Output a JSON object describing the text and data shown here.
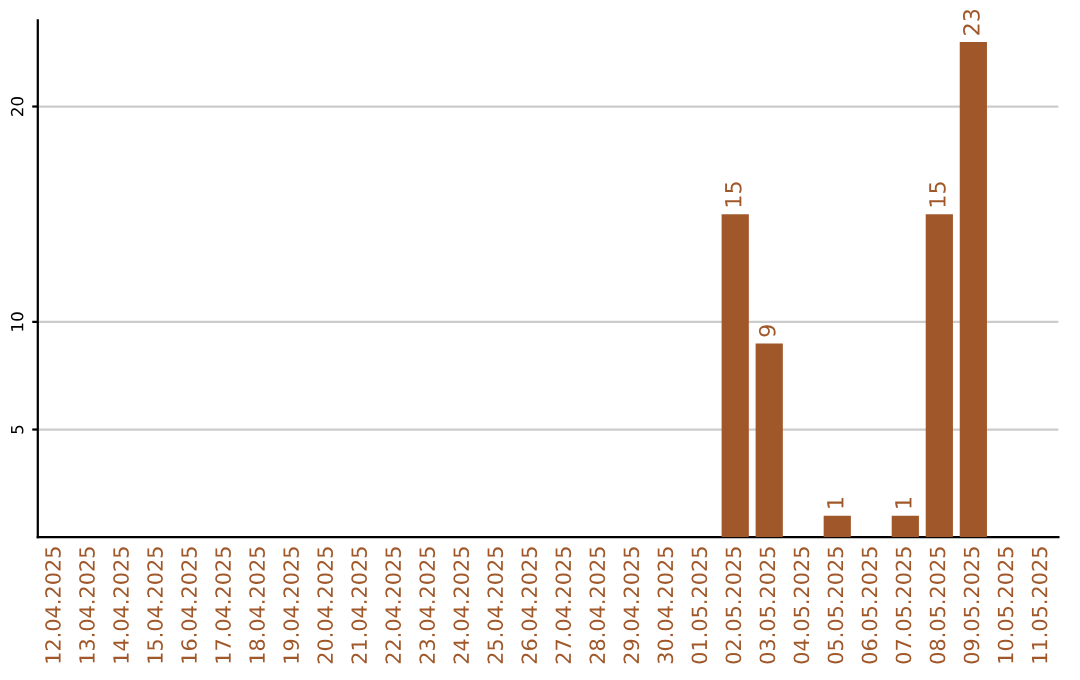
{
  "chart_data": {
    "type": "bar",
    "categories": [
      "12.04.2025",
      "13.04.2025",
      "14.04.2025",
      "15.04.2025",
      "16.04.2025",
      "17.04.2025",
      "18.04.2025",
      "19.04.2025",
      "20.04.2025",
      "21.04.2025",
      "22.04.2025",
      "23.04.2025",
      "24.04.2025",
      "25.04.2025",
      "26.04.2025",
      "27.04.2025",
      "28.04.2025",
      "29.04.2025",
      "30.04.2025",
      "01.05.2025",
      "02.05.2025",
      "03.05.2025",
      "04.05.2025",
      "05.05.2025",
      "06.05.2025",
      "07.05.2025",
      "08.05.2025",
      "09.05.2025",
      "10.05.2025",
      "11.05.2025"
    ],
    "values": [
      0,
      0,
      0,
      0,
      0,
      0,
      0,
      0,
      0,
      0,
      0,
      0,
      0,
      0,
      0,
      0,
      0,
      0,
      0,
      0,
      15,
      9,
      0,
      1,
      0,
      1,
      15,
      23,
      0,
      0
    ],
    "value_labels": [
      null,
      null,
      null,
      null,
      null,
      null,
      null,
      null,
      null,
      null,
      null,
      null,
      null,
      null,
      null,
      null,
      null,
      null,
      null,
      null,
      "15",
      "9",
      null,
      "1",
      null,
      "1",
      "15",
      "23",
      null,
      null
    ],
    "color": "#a0582a",
    "ylim": [
      0,
      24
    ],
    "yticks": [
      5,
      10,
      20
    ],
    "grid": "y"
  }
}
